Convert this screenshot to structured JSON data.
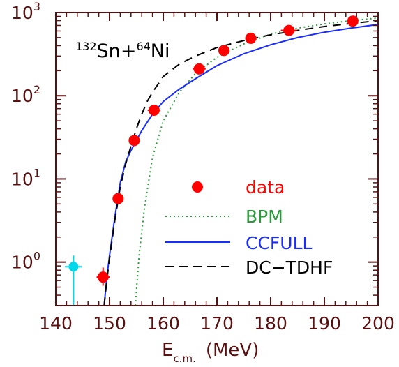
{
  "chart_data": {
    "type": "scatter",
    "title": "",
    "reaction": {
      "a_mass": "132",
      "a_sym": "Sn",
      "plus": "+",
      "b_mass": "64",
      "b_sym": "Ni"
    },
    "xlabel": {
      "main": "E",
      "sub": "c.m.",
      "unit": "(MeV)"
    },
    "ylabel": "",
    "xlim": [
      140,
      200
    ],
    "ylim": [
      0.3,
      1000
    ],
    "yscale": "log",
    "xticks": [
      140,
      150,
      160,
      170,
      180,
      190,
      200
    ],
    "xtick_labels": [
      "140",
      "150",
      "160",
      "170",
      "180",
      "190",
      "200"
    ],
    "yticks": [
      1,
      10,
      100,
      1000
    ],
    "ytick_labels": [
      {
        "base": "10",
        "exp": "0"
      },
      {
        "base": "10",
        "exp": "1"
      },
      {
        "base": "10",
        "exp": "2"
      },
      {
        "base": "10",
        "exp": "3"
      }
    ],
    "grid": false,
    "legend_position": "lower-right",
    "colors": {
      "data": "#ff0000",
      "bpm": "#2a9a3a",
      "ccfull": "#1a2dff",
      "dctdhf": "#000000",
      "lowpoint": "#00d8ea",
      "axis": "#5a1010",
      "legend_dc": "#000000"
    },
    "data_points": [
      {
        "x": 148.8,
        "y": 0.66,
        "xerr": 1.2,
        "ylo": 0.52,
        "yhi": 0.86
      },
      {
        "x": 151.6,
        "y": 5.8,
        "xerr": 0.9,
        "ylo": 5.2,
        "yhi": 6.3
      },
      {
        "x": 154.6,
        "y": 29,
        "xerr": 1.0,
        "ylo": 26,
        "yhi": 32
      },
      {
        "x": 158.3,
        "y": 67,
        "xerr": 1.2,
        "ylo": 61,
        "yhi": 73
      },
      {
        "x": 166.7,
        "y": 210,
        "xerr": 1.2,
        "ylo": 190,
        "yhi": 235
      },
      {
        "x": 171.3,
        "y": 350,
        "xerr": 1.0,
        "ylo": 325,
        "yhi": 375
      },
      {
        "x": 176.3,
        "y": 490,
        "xerr": 1.0,
        "ylo": 460,
        "yhi": 520
      },
      {
        "x": 183.4,
        "y": 610,
        "xerr": 1.5,
        "ylo": 530,
        "yhi": 690
      },
      {
        "x": 195.3,
        "y": 790,
        "xerr": 0.8,
        "ylo": 750,
        "yhi": 830
      }
    ],
    "low_point": {
      "x": 143.3,
      "y": 0.88,
      "xerr": 1.6,
      "ylo": 0.3,
      "yhi": 1.2
    },
    "series": [
      {
        "name": "BPM",
        "style": "dotted",
        "x": [
          154.8,
          155.5,
          156.5,
          158,
          160,
          163,
          166,
          170,
          175,
          180,
          185,
          190,
          195,
          200
        ],
        "y": [
          0.3,
          1.2,
          4.5,
          18,
          50,
          110,
          185,
          290,
          420,
          550,
          650,
          730,
          800,
          860
        ]
      },
      {
        "name": "CCFULL",
        "style": "solid",
        "x": [
          149,
          149.5,
          150,
          151,
          152,
          153,
          154,
          155,
          156,
          158,
          160,
          163,
          166,
          170,
          175,
          180,
          185,
          190,
          195,
          200
        ],
        "y": [
          0.3,
          0.65,
          1.2,
          3.5,
          9,
          16,
          22,
          29,
          38,
          60,
          85,
          120,
          160,
          230,
          320,
          410,
          500,
          580,
          650,
          720
        ]
      },
      {
        "name": "DC-TDHF",
        "style": "dashed",
        "x": [
          149,
          149.5,
          150,
          151,
          152,
          153,
          154,
          155,
          156,
          157,
          158,
          160,
          163,
          166,
          170,
          175,
          180,
          185,
          190,
          195,
          200
        ],
        "y": [
          0.3,
          0.6,
          1.1,
          3.2,
          8,
          15,
          25,
          40,
          60,
          85,
          110,
          170,
          240,
          300,
          380,
          460,
          540,
          610,
          680,
          740,
          800
        ]
      }
    ],
    "legend": [
      {
        "label": "data",
        "kind": "marker"
      },
      {
        "label": "BPM",
        "kind": "dotted"
      },
      {
        "label": "CCFULL",
        "kind": "solid"
      },
      {
        "label": "DC−TDHF",
        "kind": "dashed"
      }
    ]
  }
}
